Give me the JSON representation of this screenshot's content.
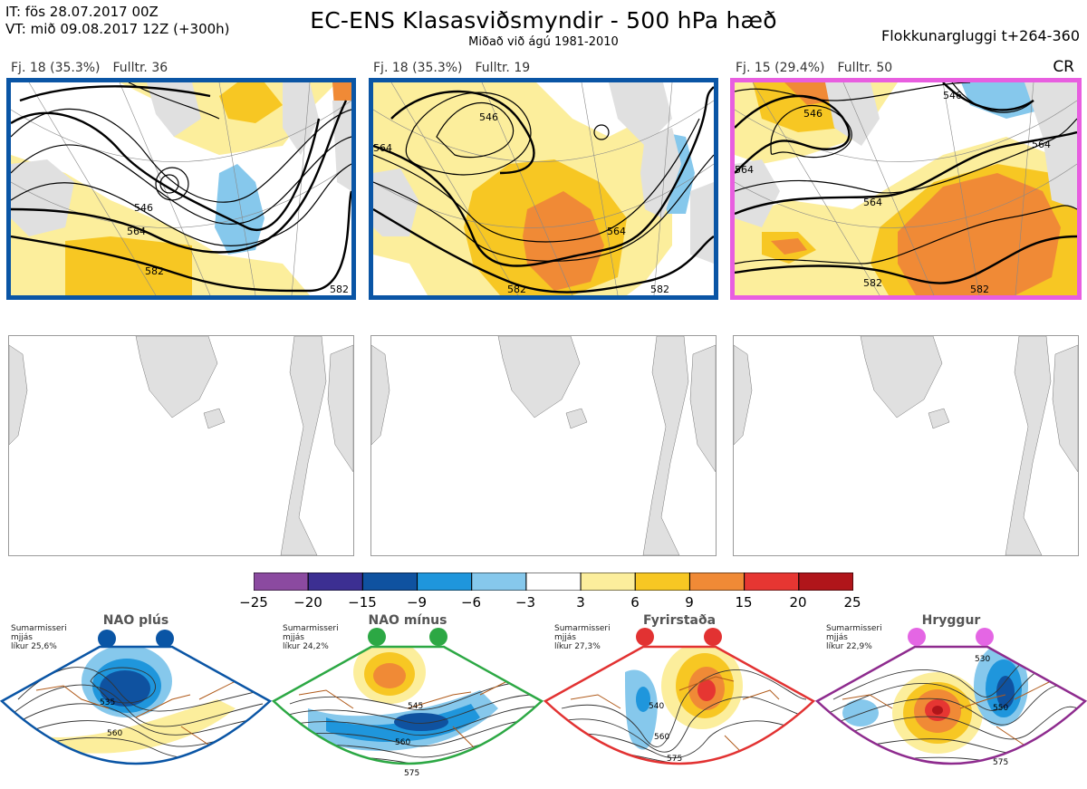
{
  "header": {
    "it_line": "IT: fös 28.07.2017 00Z",
    "vt_line": "VT: mið 09.08.2017 12Z  (+300h)",
    "title": "EC-ENS Klasasviðsmyndir - 500 hPa hæð",
    "subtitle": "Miðað við ágú 1981-2010",
    "window": "Flokkunargluggi t+264-360"
  },
  "clusters": [
    {
      "count": "Fj. 18 (35.3%)",
      "rep": "Fulltr. 36",
      "border_color": "#0a55a5",
      "contours": [
        "546",
        "564",
        "582",
        "582"
      ]
    },
    {
      "count": "Fj. 18 (35.3%)",
      "rep": "Fulltr. 19",
      "border_color": "#0a55a5",
      "contours": [
        "546",
        "564",
        "564",
        "582",
        "582"
      ]
    },
    {
      "count": "Fj. 15 (29.4%)",
      "rep": "Fulltr. 50",
      "border_color": "#e85ee0",
      "contours": [
        "546",
        "546",
        "564",
        "564",
        "564",
        "582",
        "582"
      ]
    }
  ],
  "cr_label": "CR",
  "colorbar": {
    "ticks": [
      "−25",
      "−20",
      "−15",
      "−9",
      "−6",
      "−3",
      "3",
      "6",
      "9",
      "15",
      "20",
      "25"
    ],
    "colors": [
      "#8b4aa0",
      "#3c2f92",
      "#0f52a0",
      "#1f96dc",
      "#86c8ec",
      "#ffffff",
      "#fcee9c",
      "#f7c723",
      "#f08a36",
      "#e63632",
      "#b0151a"
    ]
  },
  "regimes": [
    {
      "name": "NAO plús",
      "note": [
        "Sumarmisseri",
        "mjjás",
        "líkur 25,6%"
      ],
      "color": "#0a55a5",
      "contours": [
        "535",
        "560"
      ]
    },
    {
      "name": "NAO mínus",
      "note": [
        "Sumarmisseri",
        "mjjás",
        "líkur 24,2%"
      ],
      "color": "#2ca844",
      "contours": [
        "545",
        "560",
        "575"
      ]
    },
    {
      "name": "Fyrirstaða",
      "note": [
        "Sumarmisseri",
        "mjjás",
        "líkur 27,3%"
      ],
      "color": "#e23232",
      "contours": [
        "540",
        "560",
        "575"
      ]
    },
    {
      "name": "Hryggur",
      "note": [
        "Sumarmisseri",
        "mjjás",
        "líkur 22,9%"
      ],
      "color": "#e466e4",
      "border_color": "#8e2b8e",
      "contours": [
        "530",
        "550",
        "575"
      ]
    }
  ]
}
